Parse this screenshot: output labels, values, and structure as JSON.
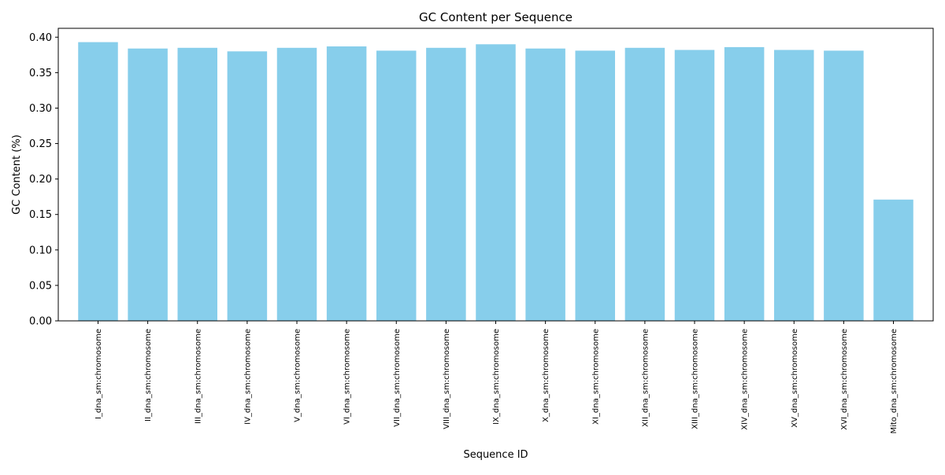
{
  "chart_data": {
    "type": "bar",
    "title": "GC Content per Sequence",
    "xlabel": "Sequence ID",
    "ylabel": "GC Content (%)",
    "ylim": [
      0,
      0.4125
    ],
    "yticks": [
      "0.00",
      "0.05",
      "0.10",
      "0.15",
      "0.20",
      "0.25",
      "0.30",
      "0.35",
      "0.40"
    ],
    "ytick_values": [
      0,
      0.05,
      0.1,
      0.15,
      0.2,
      0.25,
      0.3,
      0.35,
      0.4
    ],
    "grid": false,
    "legend": "none",
    "bar_color": "#87ceeb",
    "categories": [
      "I_dna_sm:chromosome",
      "II_dna_sm:chromosome",
      "III_dna_sm:chromosome",
      "IV_dna_sm:chromosome",
      "V_dna_sm:chromosome",
      "VI_dna_sm:chromosome",
      "VII_dna_sm:chromosome",
      "VIII_dna_sm:chromosome",
      "IX_dna_sm:chromosome",
      "X_dna_sm:chromosome",
      "XI_dna_sm:chromosome",
      "XII_dna_sm:chromosome",
      "XIII_dna_sm:chromosome",
      "XIV_dna_sm:chromosome",
      "XV_dna_sm:chromosome",
      "XVI_dna_sm:chromosome",
      "Mito_dna_sm:chromosome"
    ],
    "values": [
      0.393,
      0.384,
      0.385,
      0.38,
      0.385,
      0.387,
      0.381,
      0.385,
      0.39,
      0.384,
      0.381,
      0.385,
      0.382,
      0.386,
      0.382,
      0.381,
      0.171
    ]
  }
}
